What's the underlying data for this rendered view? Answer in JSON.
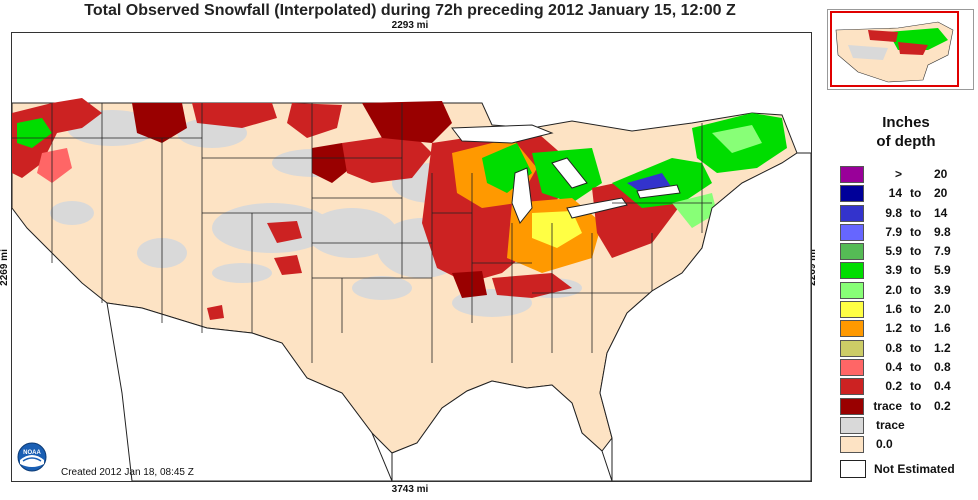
{
  "title": "Total Observed Snowfall (Interpolated) during 72h preceding 2012 January 15, 12:00 Z",
  "distances": {
    "top": "2293 mi",
    "bottom": "3743 mi",
    "left": "2269 mi",
    "right": "2269 mi"
  },
  "created": "Created 2012 Jan 18, 08:45 Z",
  "logo": {
    "name": "NOAA"
  },
  "legend": {
    "heading_line1": "Inches",
    "heading_line2": "of depth",
    "items": [
      {
        "lo": ">",
        "to": "",
        "hi": "20",
        "color": "#990099"
      },
      {
        "lo": "14",
        "to": "to",
        "hi": "20",
        "color": "#000099"
      },
      {
        "lo": "9.8",
        "to": "to",
        "hi": "14",
        "color": "#3333cc"
      },
      {
        "lo": "7.9",
        "to": "to",
        "hi": "9.8",
        "color": "#6666ff"
      },
      {
        "lo": "5.9",
        "to": "to",
        "hi": "7.9",
        "color": "#55bb55"
      },
      {
        "lo": "3.9",
        "to": "to",
        "hi": "5.9",
        "color": "#00dd00"
      },
      {
        "lo": "2.0",
        "to": "to",
        "hi": "3.9",
        "color": "#88ff77"
      },
      {
        "lo": "1.6",
        "to": "to",
        "hi": "2.0",
        "color": "#ffff44"
      },
      {
        "lo": "1.2",
        "to": "to",
        "hi": "1.6",
        "color": "#ff9900"
      },
      {
        "lo": "0.8",
        "to": "to",
        "hi": "1.2",
        "color": "#cccc66"
      },
      {
        "lo": "0.4",
        "to": "to",
        "hi": "0.8",
        "color": "#ff6666"
      },
      {
        "lo": "0.2",
        "to": "to",
        "hi": "0.4",
        "color": "#cc2222"
      },
      {
        "lo": "trace",
        "to": "to",
        "hi": "0.2",
        "color": "#990000"
      },
      {
        "single": "trace",
        "color": "#d9d9d9"
      },
      {
        "single": "0.0",
        "color": "#fde3c4"
      }
    ],
    "not_estimated": "Not Estimated"
  },
  "colors": {
    "no_snow": "#fde3c4",
    "trace": "#d9d9d9",
    "water": "#ffffff",
    "border": "#222222"
  }
}
